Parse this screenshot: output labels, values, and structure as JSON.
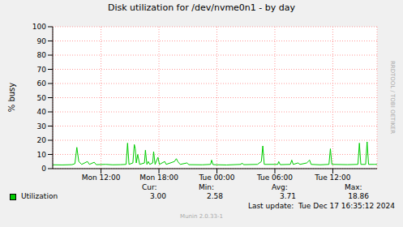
{
  "chart_data": {
    "type": "line",
    "title": "Disk utilization for /dev/nvme0n1 - by day",
    "y_label": "% busy",
    "x": [
      7.0,
      8.0,
      9.0,
      9.3,
      9.5,
      9.7,
      10.0,
      10.6,
      10.8,
      11.3,
      11.5,
      12.5,
      13.2,
      14.0,
      14.6,
      14.75,
      14.9,
      15.3,
      15.45,
      15.55,
      15.65,
      15.8,
      16.0,
      16.5,
      16.6,
      16.75,
      16.9,
      17.05,
      17.35,
      17.45,
      17.6,
      17.9,
      18.05,
      18.6,
      18.75,
      19.6,
      19.8,
      19.95,
      20.2,
      20.9,
      21.1,
      22.5,
      23.35,
      23.45,
      23.6,
      25.0,
      26.5,
      26.6,
      26.75,
      28.2,
      28.6,
      28.75,
      28.9,
      30.3,
      30.4,
      30.55,
      31.6,
      31.75,
      31.9,
      32.4,
      32.6,
      33.3,
      33.45,
      33.6,
      33.75,
      34.7,
      35.6,
      35.75,
      35.9,
      37.5,
      38.6,
      38.75,
      38.9,
      39.4,
      39.55,
      39.7,
      40.3,
      40.58
    ],
    "series": [
      {
        "name": "Utilization",
        "color": "#00cc00",
        "values": [
          2.7,
          2.6,
          2.8,
          3.5,
          15,
          5,
          3,
          5,
          3,
          4.5,
          2.8,
          3,
          2.7,
          2.8,
          3,
          18,
          3,
          4,
          17,
          14,
          4,
          10,
          3,
          4,
          13,
          3,
          5,
          3,
          4,
          12,
          3,
          8,
          3,
          5,
          3,
          5,
          7,
          5,
          3,
          4,
          2.8,
          2.7,
          3,
          6,
          2.8,
          2.58,
          3,
          4,
          2.8,
          3,
          5,
          16,
          3,
          3,
          5,
          2.8,
          3,
          6,
          3,
          4,
          3,
          4,
          5,
          6,
          3,
          2.7,
          3,
          14,
          3,
          2.8,
          3,
          18,
          3,
          3,
          18.86,
          3,
          3,
          3
        ]
      }
    ],
    "xlim": [
      7,
      40.58
    ],
    "xticks": [
      {
        "value": 12,
        "label": "Mon 12:00"
      },
      {
        "value": 18,
        "label": "Mon 18:00"
      },
      {
        "value": 24,
        "label": "Tue 00:00"
      },
      {
        "value": 30,
        "label": "Tue 06:00"
      },
      {
        "value": 36,
        "label": "Tue 12:00"
      }
    ],
    "ylim": [
      0,
      100
    ],
    "yticks": [
      0,
      10,
      20,
      30,
      40,
      50,
      60,
      70,
      80,
      90,
      100
    ],
    "grid": true,
    "stats_headers": [
      "Cur:",
      "Min:",
      "Avg:",
      "Max:"
    ],
    "stats": [
      "3.00",
      "2.58",
      "3.71",
      "18.86"
    ],
    "footer": "Last update:  Tue Dec 17 16:35:12 2024",
    "credit": "Munin 2.0.33-1",
    "watermark": "RRDTOOL / TOBI OETIKER"
  }
}
